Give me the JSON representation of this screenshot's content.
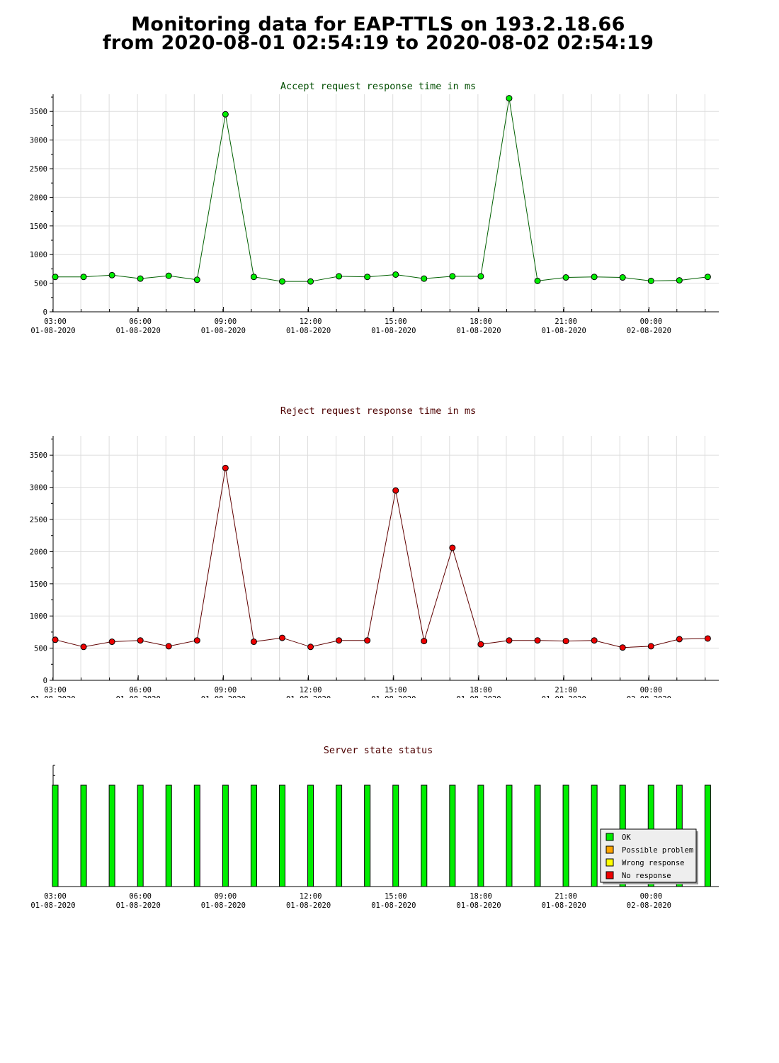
{
  "page": {
    "title_line1": "Monitoring data for EAP-TTLS on 193.2.18.66",
    "title_line2": "from 2020-08-01 02:54:19 to 2020-08-02 02:54:19"
  },
  "colors": {
    "accept_series": "#00ee00",
    "accept_line": "#006000",
    "reject_series": "#ee0000",
    "reject_line": "#600000",
    "status_ok": "#00ee00",
    "status_possible_problem": "#ffa500",
    "status_wrong_response": "#ffff00",
    "status_no_response": "#ee0000",
    "grid": "#dddddd"
  },
  "x_axis": {
    "ticks": [
      {
        "time": "03:00",
        "date": "01-08-2020"
      },
      {
        "time": "06:00",
        "date": "01-08-2020"
      },
      {
        "time": "09:00",
        "date": "01-08-2020"
      },
      {
        "time": "12:00",
        "date": "01-08-2020"
      },
      {
        "time": "15:00",
        "date": "01-08-2020"
      },
      {
        "time": "18:00",
        "date": "01-08-2020"
      },
      {
        "time": "21:00",
        "date": "01-08-2020"
      },
      {
        "time": "00:00",
        "date": "02-08-2020"
      }
    ]
  },
  "chart_data": [
    {
      "type": "line",
      "title": "Accept request response time in ms",
      "title_color": "#004d00",
      "xlabel": "",
      "ylabel": "",
      "x": [
        "03:00",
        "04:00",
        "05:00",
        "06:00",
        "07:00",
        "08:00",
        "09:00",
        "10:00",
        "11:00",
        "12:00",
        "13:00",
        "14:00",
        "15:00",
        "16:00",
        "17:00",
        "18:00",
        "19:00",
        "20:00",
        "21:00",
        "22:00",
        "23:00",
        "00:00",
        "01:00",
        "02:00"
      ],
      "values": [
        610,
        610,
        640,
        580,
        630,
        560,
        3450,
        610,
        530,
        530,
        620,
        610,
        650,
        580,
        620,
        620,
        3730,
        540,
        600,
        610,
        600,
        540,
        550,
        610
      ],
      "ylim": [
        0,
        3800
      ],
      "yticks": [
        "0",
        "500",
        "1000",
        "1500",
        "2000",
        "2500",
        "3000",
        "3500"
      ],
      "grid": true
    },
    {
      "type": "line",
      "title": "Reject request response time in ms",
      "title_color": "#4d0000",
      "xlabel": "",
      "ylabel": "",
      "x": [
        "03:00",
        "04:00",
        "05:00",
        "06:00",
        "07:00",
        "08:00",
        "09:00",
        "10:00",
        "11:00",
        "12:00",
        "13:00",
        "14:00",
        "15:00",
        "16:00",
        "17:00",
        "18:00",
        "19:00",
        "20:00",
        "21:00",
        "22:00",
        "23:00",
        "00:00",
        "01:00",
        "02:00"
      ],
      "values": [
        630,
        520,
        600,
        620,
        530,
        620,
        3300,
        600,
        660,
        520,
        620,
        620,
        2950,
        610,
        2060,
        560,
        620,
        620,
        610,
        620,
        510,
        530,
        640,
        650
      ],
      "ylim": [
        0,
        3800
      ],
      "yticks": [
        "0",
        "500",
        "1000",
        "1500",
        "2000",
        "2500",
        "3000",
        "3500"
      ],
      "grid": true
    },
    {
      "type": "bar",
      "title": "Server state status",
      "title_color": "#4d0000",
      "x": [
        "03:00",
        "04:00",
        "05:00",
        "06:00",
        "07:00",
        "08:00",
        "09:00",
        "10:00",
        "11:00",
        "12:00",
        "13:00",
        "14:00",
        "15:00",
        "16:00",
        "17:00",
        "18:00",
        "19:00",
        "20:00",
        "21:00",
        "22:00",
        "23:00",
        "00:00",
        "01:00",
        "02:00"
      ],
      "values": [
        "OK",
        "OK",
        "OK",
        "OK",
        "OK",
        "OK",
        "OK",
        "OK",
        "OK",
        "OK",
        "OK",
        "OK",
        "OK",
        "OK",
        "OK",
        "OK",
        "OK",
        "OK",
        "OK",
        "OK",
        "OK",
        "OK",
        "OK",
        "OK"
      ],
      "legend_position": "bottom-right",
      "legend": [
        "OK",
        "Possible problem",
        "Wrong response",
        "No response"
      ]
    }
  ]
}
